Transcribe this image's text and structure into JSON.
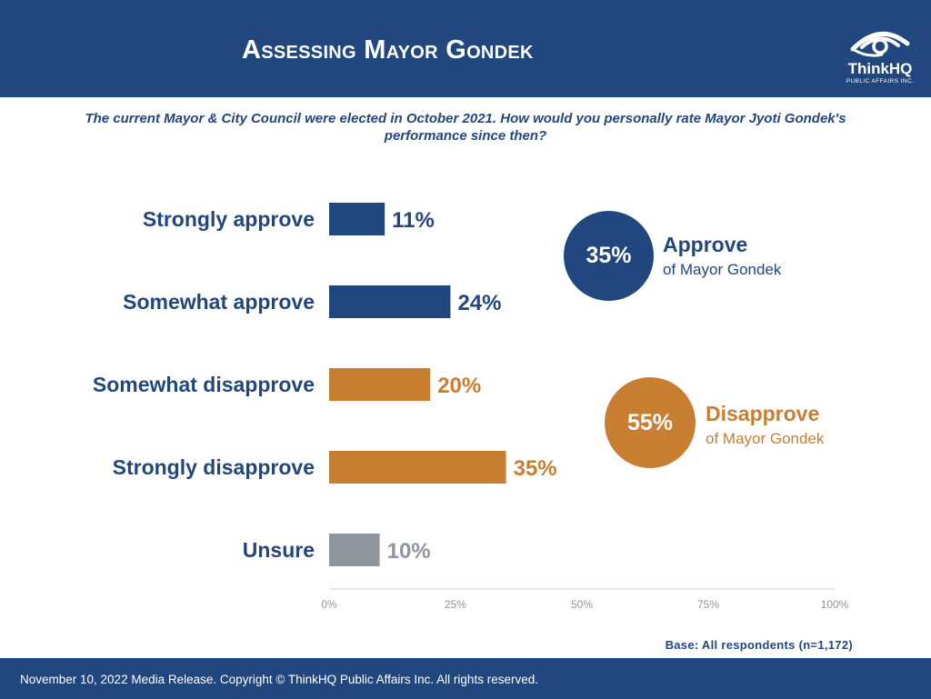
{
  "header": {
    "title": "Assessing Mayor Gondek",
    "logo_name": "ThinkHQ",
    "logo_sub": "PUBLIC AFFAIRS INC."
  },
  "question": {
    "line1": "The current Mayor & City Council were elected in October 2021. How would you personally rate Mayor Jyoti Gondek's",
    "line2": "performance since then?"
  },
  "chart_data": {
    "type": "bar",
    "orientation": "horizontal",
    "categories": [
      "Strongly approve",
      "Somewhat approve",
      "Somewhat disapprove",
      "Strongly disapprove",
      "Unsure"
    ],
    "values": [
      11,
      24,
      20,
      35,
      10
    ],
    "value_labels": [
      "11%",
      "24%",
      "20%",
      "35%",
      "10%"
    ],
    "bar_colors": [
      "#22477f",
      "#22477f",
      "#c97f32",
      "#c97f32",
      "#8f959d"
    ],
    "label_color": "#22477f",
    "xlim": [
      0,
      100
    ],
    "xticks": [
      0,
      25,
      50,
      75,
      100
    ],
    "xtick_labels": [
      "0%",
      "25%",
      "50%",
      "75%",
      "100%"
    ],
    "grid": false
  },
  "summary": {
    "approve_value": "35%",
    "approve_label": "Approve",
    "approve_sub": "of Mayor Gondek",
    "disapprove_value": "55%",
    "disapprove_label": "Disapprove",
    "disapprove_sub": "of Mayor Gondek"
  },
  "base_note": "Base: All respondents (n=1,172)",
  "footer": {
    "text": "November 10, 2022 Media Release. Copyright © ThinkHQ Public Affairs Inc. All rights reserved."
  },
  "colors": {
    "brand_blue": "#22477f",
    "orange": "#c97f32",
    "gray": "#8f959d"
  }
}
